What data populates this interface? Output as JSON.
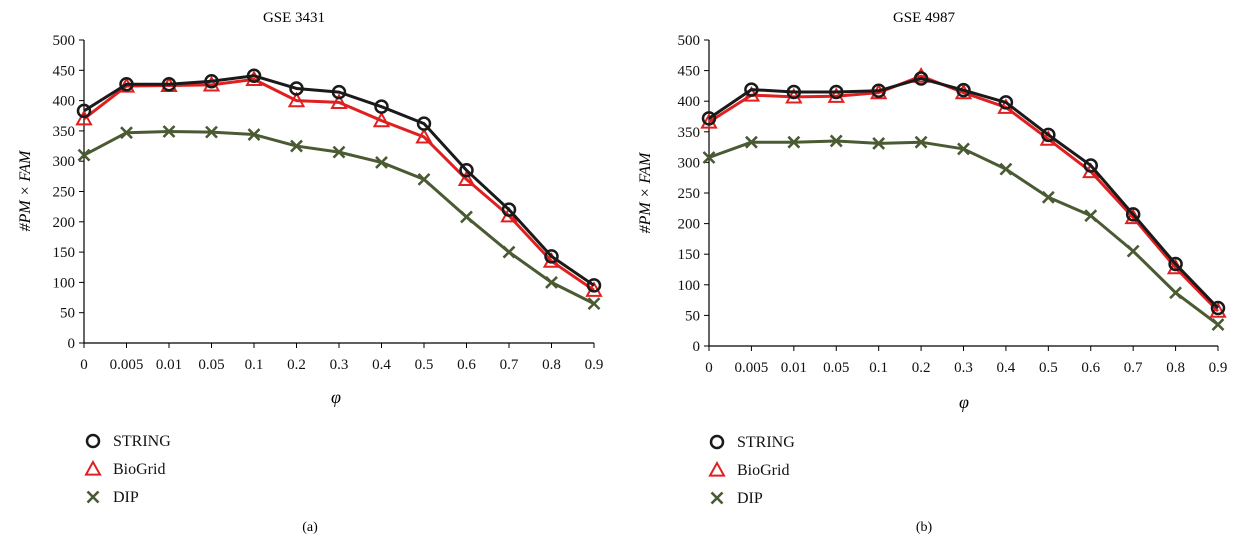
{
  "colors": {
    "STRING": "#1a1a1a",
    "BioGrid": "#e02020",
    "DIP": "#4a5a32",
    "axis": "#000000"
  },
  "chart_data": [
    {
      "type": "line",
      "title": "GSE 3431",
      "panel_label": "(a)",
      "xlabel": "φ",
      "ylabel": "#PM × FAM",
      "categories": [
        "0",
        "0.005",
        "0.01",
        "0.05",
        "0.1",
        "0.2",
        "0.3",
        "0.4",
        "0.5",
        "0.6",
        "0.7",
        "0.8",
        "0.9"
      ],
      "ylim": [
        0,
        500
      ],
      "yticks": [
        "0",
        "50",
        "100",
        "150",
        "200",
        "250",
        "300",
        "350",
        "400",
        "450",
        "500"
      ],
      "grid": false,
      "legend_position": "below-left",
      "series": [
        {
          "name": "STRING",
          "marker": "circle",
          "values": [
            383,
            427,
            427,
            432,
            441,
            420,
            414,
            390,
            362,
            285,
            220,
            143,
            95
          ]
        },
        {
          "name": "BioGrid",
          "marker": "triangle",
          "values": [
            370,
            424,
            425,
            426,
            435,
            400,
            397,
            367,
            340,
            270,
            210,
            135,
            87
          ]
        },
        {
          "name": "DIP",
          "marker": "x",
          "values": [
            310,
            347,
            349,
            348,
            344,
            325,
            315,
            298,
            270,
            208,
            150,
            100,
            65
          ]
        }
      ]
    },
    {
      "type": "line",
      "title": "GSE 4987",
      "panel_label": "(b)",
      "xlabel": "φ",
      "ylabel": "#PM × FAM",
      "categories": [
        "0",
        "0.005",
        "0.01",
        "0.05",
        "0.1",
        "0.2",
        "0.3",
        "0.4",
        "0.5",
        "0.6",
        "0.7",
        "0.8",
        "0.9"
      ],
      "ylim": [
        0,
        500
      ],
      "yticks": [
        "0",
        "50",
        "100",
        "150",
        "200",
        "250",
        "300",
        "350",
        "400",
        "450",
        "500"
      ],
      "grid": false,
      "legend_position": "below-left",
      "series": [
        {
          "name": "STRING",
          "marker": "circle",
          "values": [
            372,
            419,
            415,
            415,
            417,
            437,
            418,
            398,
            345,
            295,
            215,
            134,
            62
          ]
        },
        {
          "name": "BioGrid",
          "marker": "triangle",
          "values": [
            366,
            410,
            407,
            408,
            414,
            441,
            414,
            390,
            338,
            285,
            210,
            128,
            57
          ]
        },
        {
          "name": "DIP",
          "marker": "x",
          "values": [
            308,
            333,
            333,
            335,
            331,
            333,
            322,
            289,
            243,
            213,
            155,
            87,
            35
          ]
        }
      ]
    }
  ]
}
